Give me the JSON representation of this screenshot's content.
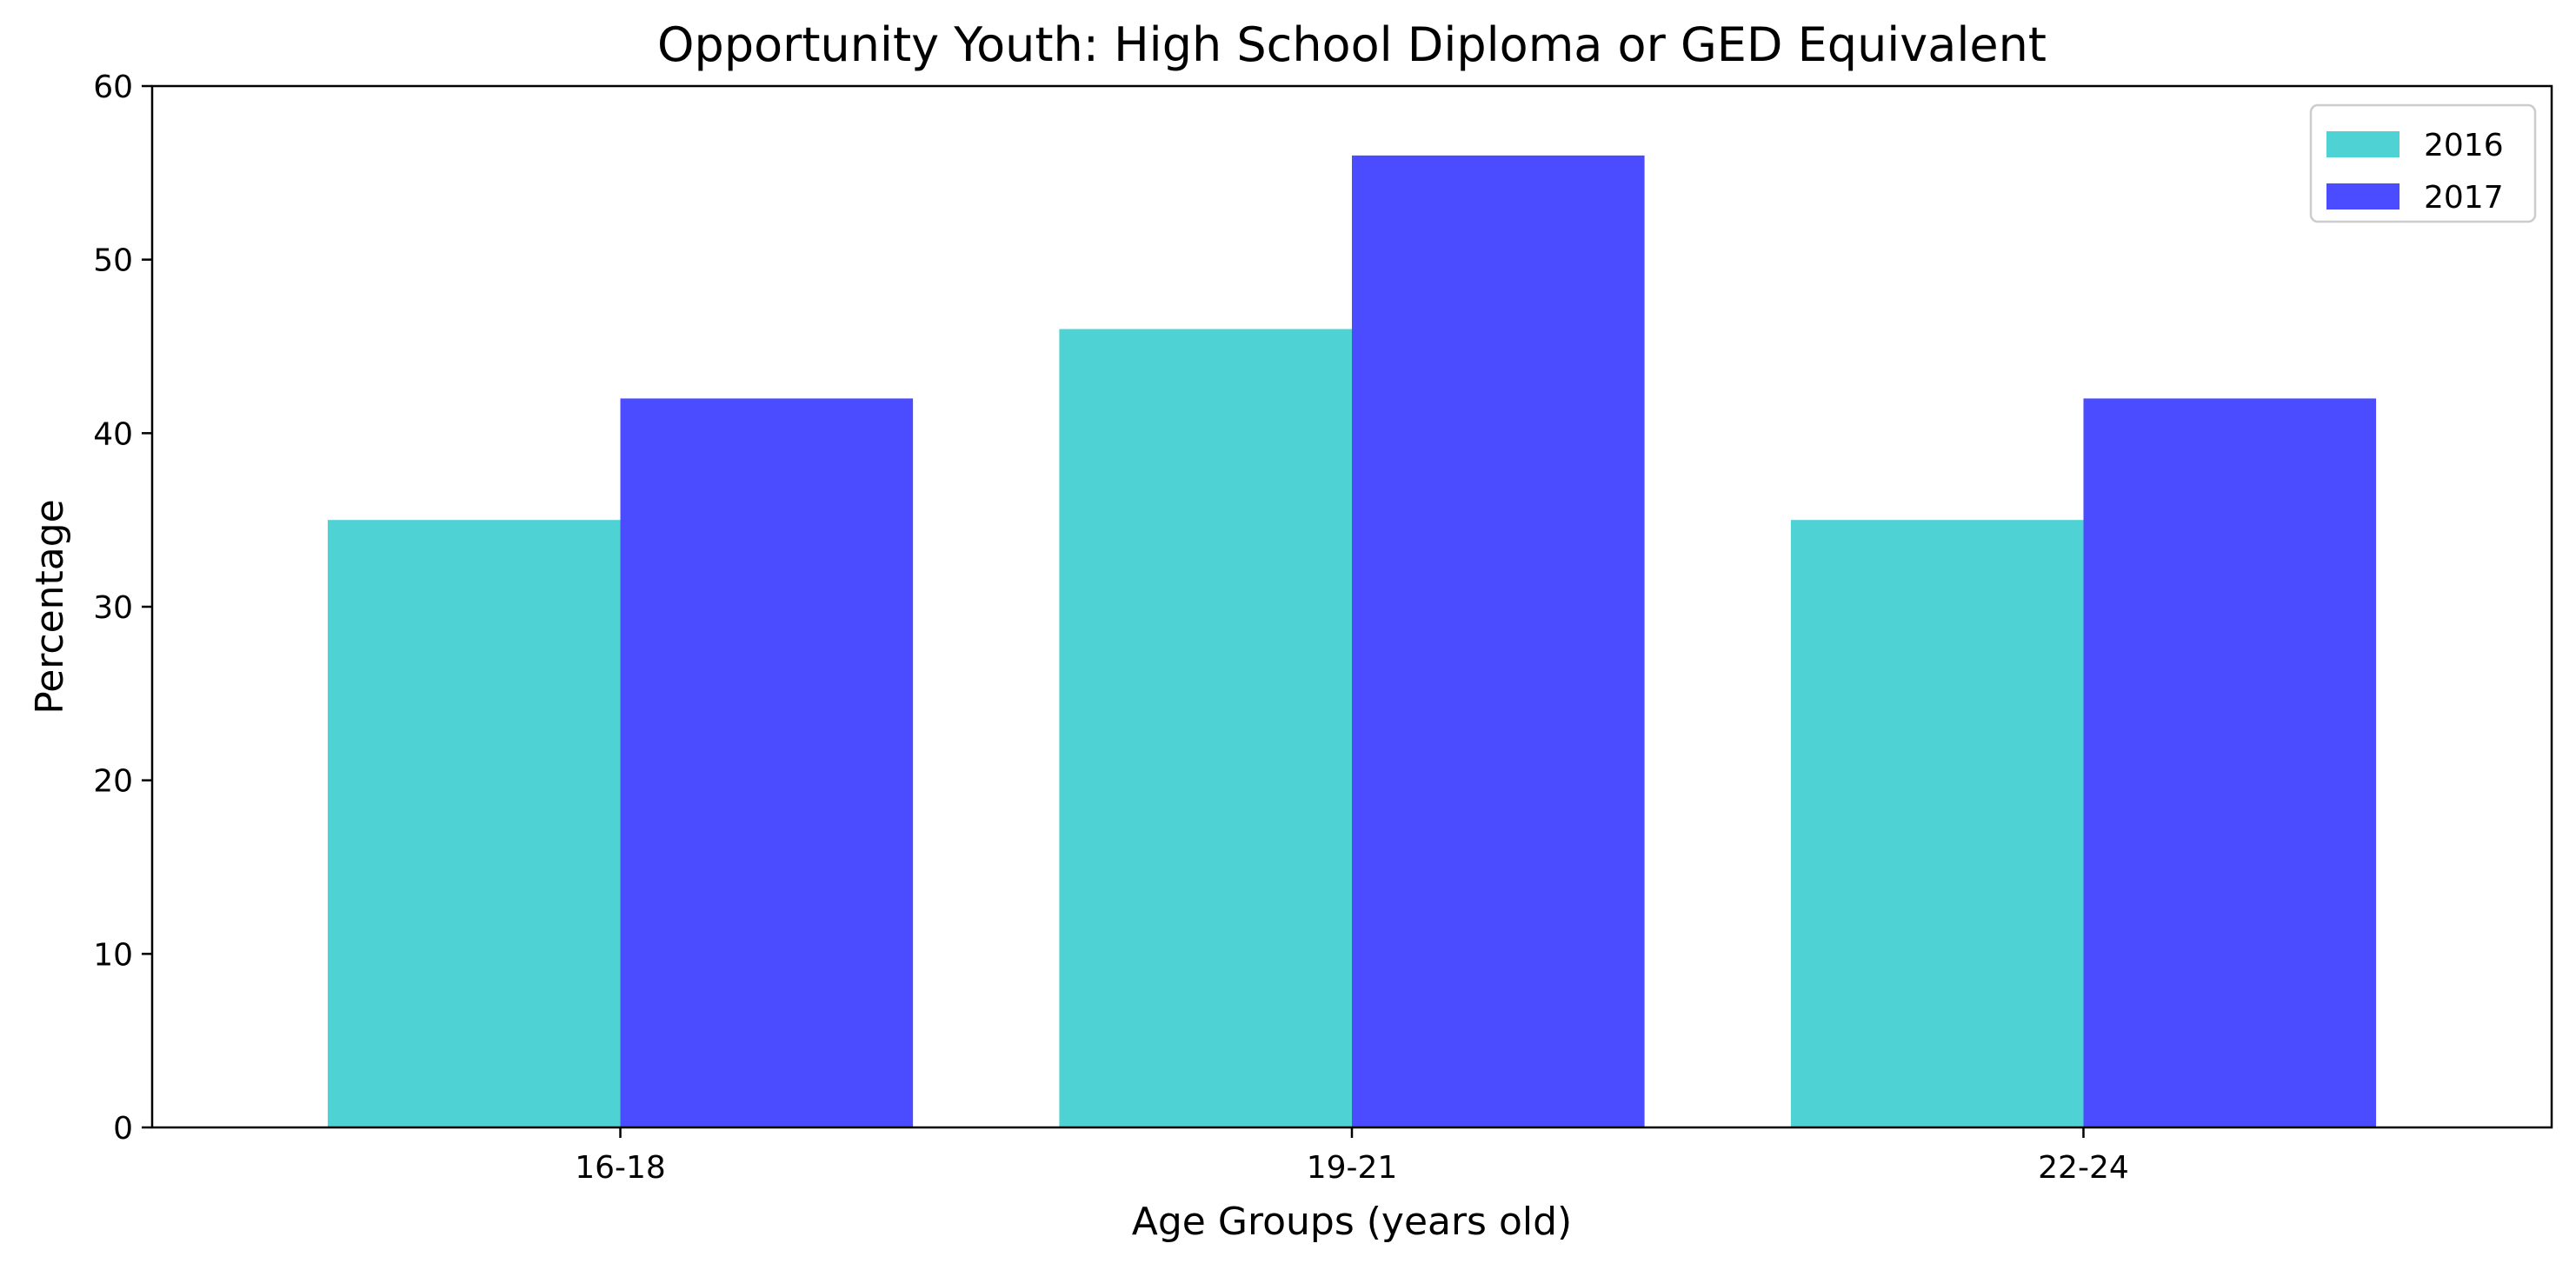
{
  "chart_data": {
    "type": "bar",
    "title": "Opportunity Youth: High School Diploma or GED Equivalent",
    "xlabel": "Age Groups (years old)",
    "ylabel": "Percentage",
    "categories": [
      "16-18",
      "19-21",
      "22-24"
    ],
    "series": [
      {
        "name": "2016",
        "values": [
          35,
          46,
          35
        ],
        "color": "#4ed2d4"
      },
      {
        "name": "2017",
        "values": [
          42,
          56,
          42
        ],
        "color": "#4b4bff"
      }
    ],
    "ylim": [
      0,
      60
    ],
    "yticks": [
      0,
      10,
      20,
      30,
      40,
      50,
      60
    ],
    "grid": false,
    "legend_position": "top-right"
  }
}
